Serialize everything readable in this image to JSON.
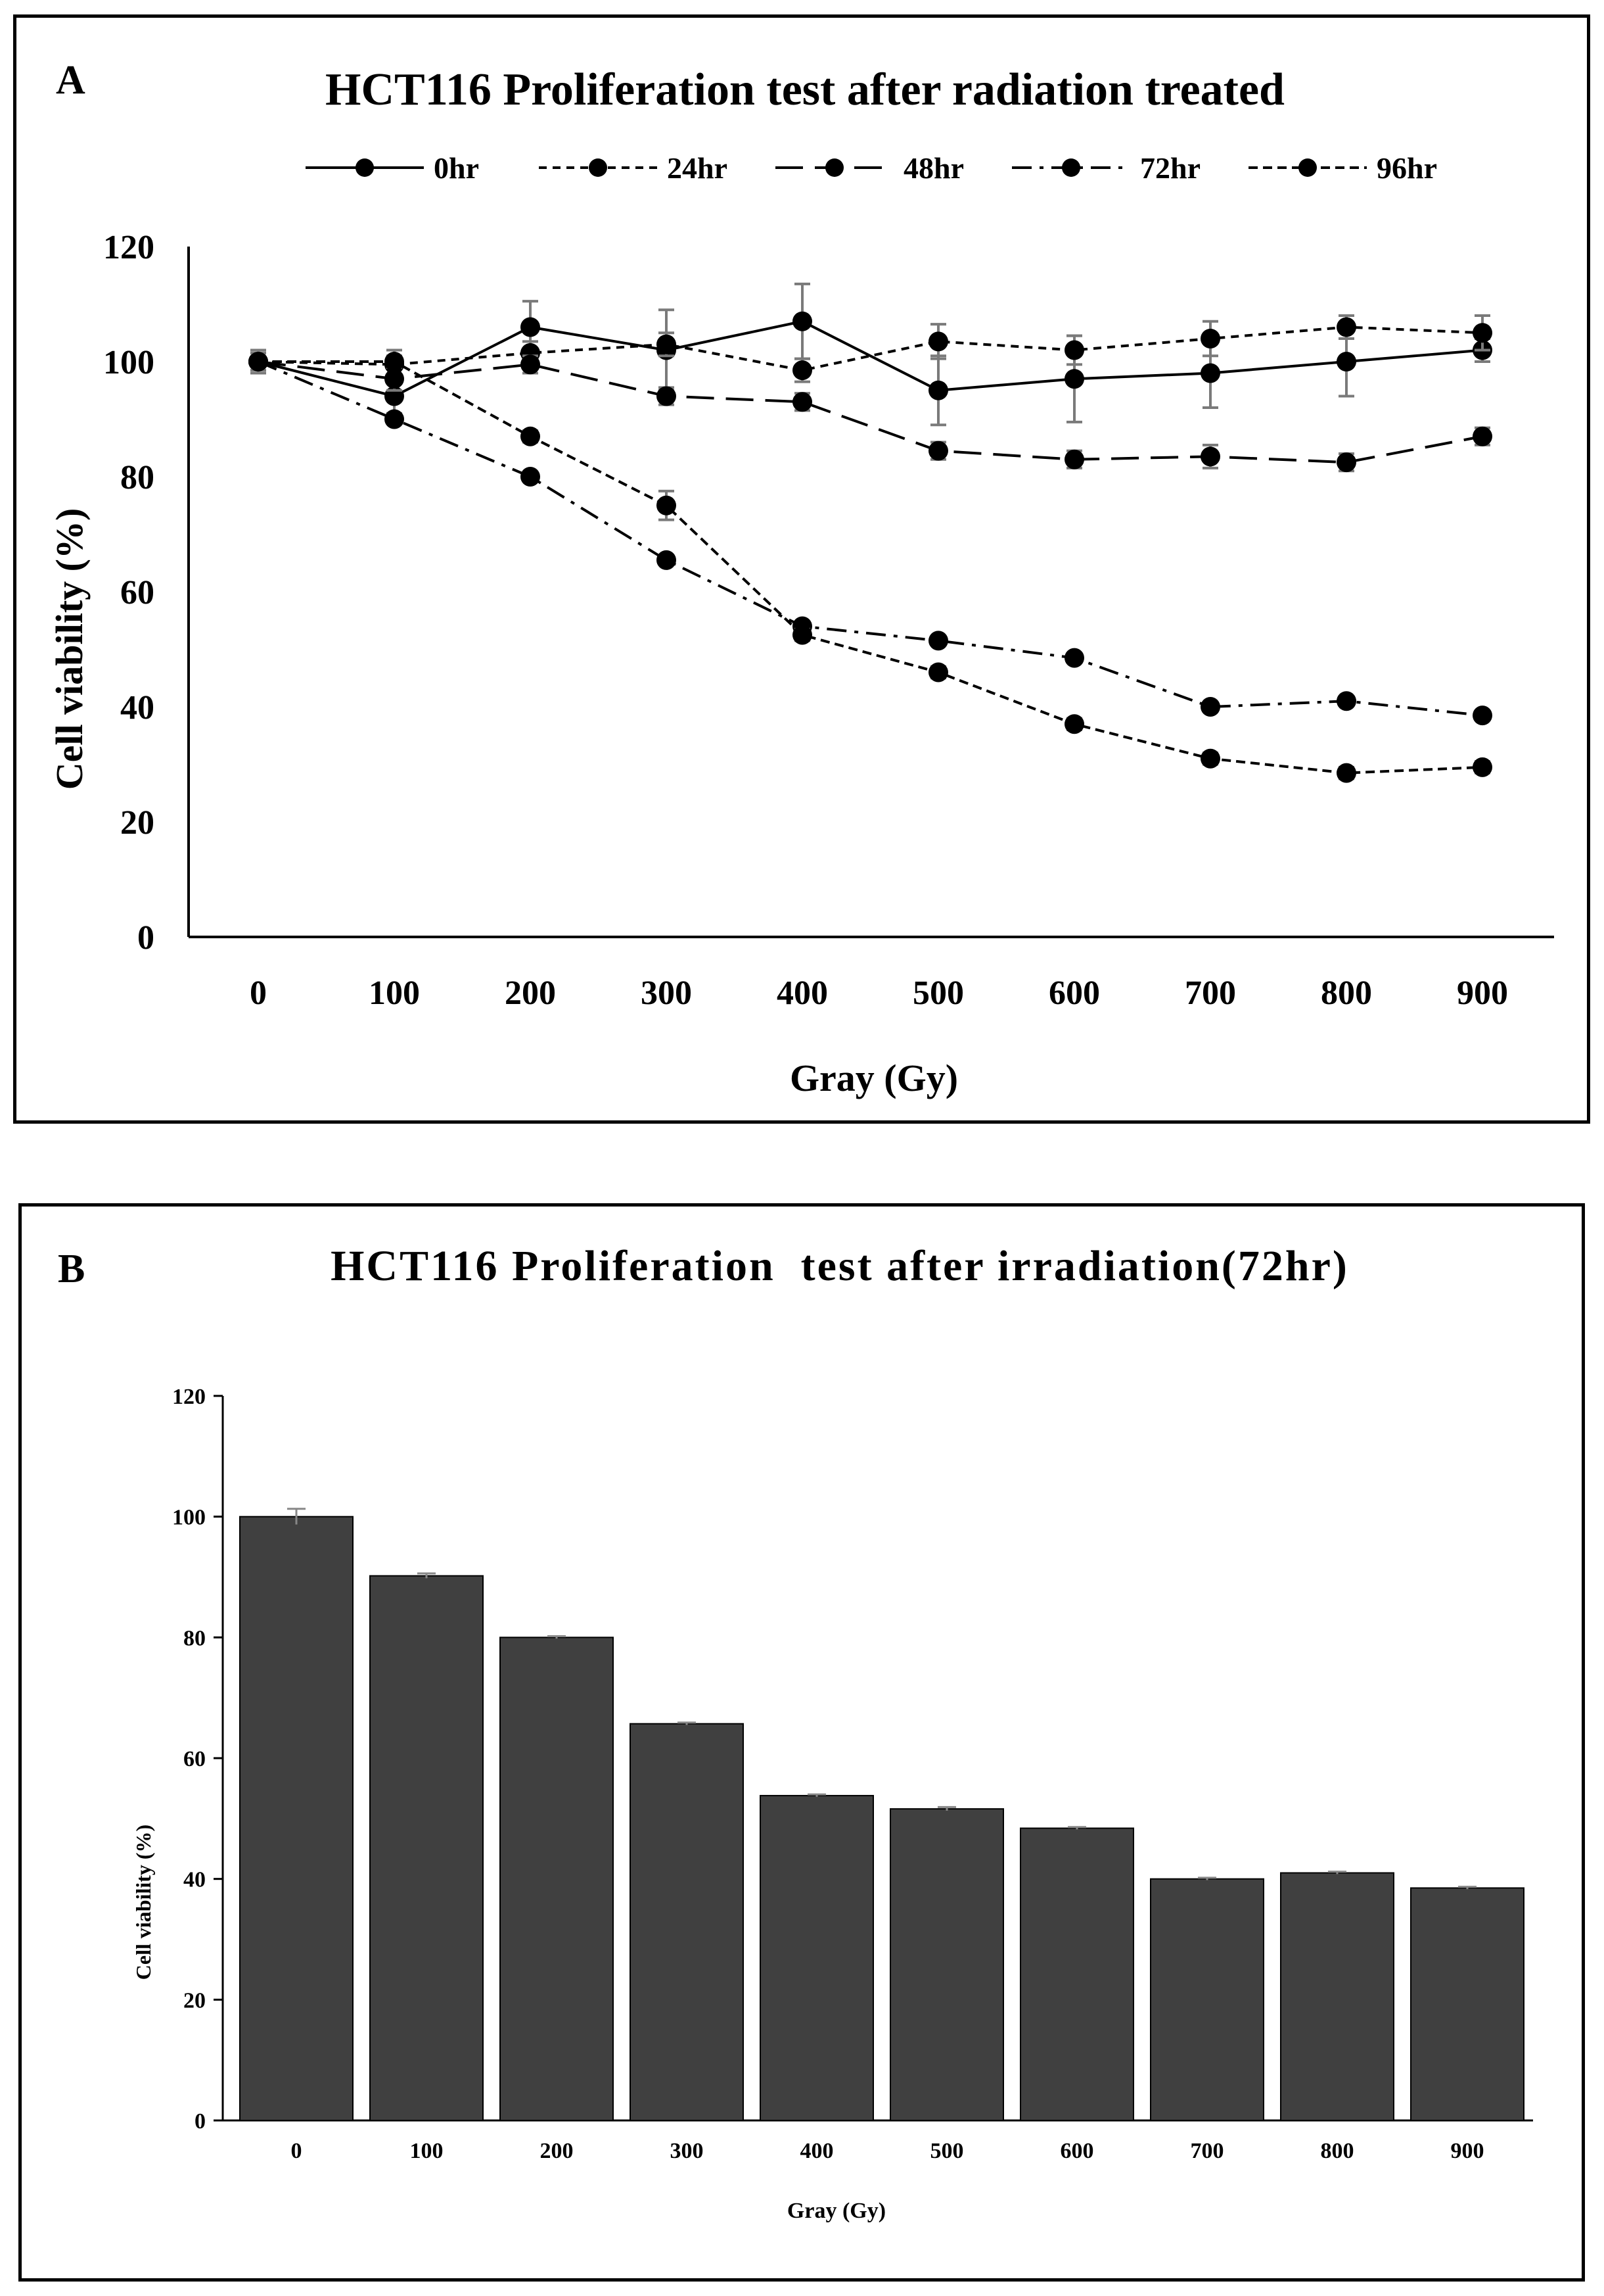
{
  "chart_data": [
    {
      "panel_letter": "A",
      "type": "line",
      "title": "HCT116 Proliferation test after radiation treated",
      "xlabel": "Gray (Gy)",
      "ylabel": "Cell viability  (%)",
      "categories": [
        "0",
        "100",
        "200",
        "300",
        "400",
        "500",
        "600",
        "700",
        "800",
        "900"
      ],
      "ylim": [
        0,
        120
      ],
      "yticks": [
        0,
        20,
        40,
        60,
        80,
        100,
        120
      ],
      "grid": false,
      "legend_position": "top",
      "series": [
        {
          "name": "0hr",
          "dash": "solid",
          "values": [
            100,
            94,
            106,
            102,
            107,
            95,
            97,
            98,
            100,
            102
          ],
          "errors": [
            2,
            3,
            4.5,
            7,
            6.5,
            6,
            7.5,
            6,
            6,
            2
          ]
        },
        {
          "name": "24hr",
          "dash": "short-dash",
          "values": [
            100,
            99.5,
            101.5,
            103,
            98.5,
            103.5,
            102,
            104,
            106,
            105
          ],
          "errors": [
            2,
            2.5,
            2,
            2,
            2,
            3,
            2.5,
            3,
            2,
            3
          ]
        },
        {
          "name": "48hr",
          "dash": "long-dash",
          "values": [
            100,
            97,
            99.5,
            94,
            93,
            84.5,
            83,
            83.5,
            82.5,
            87
          ],
          "errors": [
            2,
            2,
            1.5,
            1.5,
            1.5,
            1.5,
            1.5,
            2,
            1.5,
            1.5
          ]
        },
        {
          "name": "72hr",
          "dash": "dash-dot",
          "values": [
            100,
            90,
            80,
            65.5,
            54,
            51.5,
            48.5,
            40,
            41,
            38.5
          ],
          "errors": [
            1.5,
            0.5,
            0.5,
            0.5,
            0.5,
            0.5,
            0.5,
            0.5,
            0.5,
            0.5
          ]
        },
        {
          "name": "96hr",
          "dash": "dotted",
          "values": [
            100,
            100,
            87,
            75,
            52.5,
            46,
            37,
            31,
            28.5,
            29.5
          ],
          "errors": [
            1.5,
            1,
            1,
            2.5,
            1,
            1,
            1,
            1,
            1,
            1
          ]
        }
      ]
    },
    {
      "panel_letter": "B",
      "type": "bar",
      "title": "HCT116 Proliferation  test after irradiation(72hr)",
      "xlabel": "Gray (Gy)",
      "ylabel": "Cell viability (%)",
      "categories": [
        "0",
        "100",
        "200",
        "300",
        "400",
        "500",
        "600",
        "700",
        "800",
        "900"
      ],
      "values": [
        100,
        90.2,
        80,
        65.7,
        53.8,
        51.6,
        48.4,
        40,
        41,
        38.5
      ],
      "errors": [
        1.3,
        0.4,
        0.2,
        0.2,
        0.2,
        0.3,
        0.2,
        0.2,
        0.2,
        0.2
      ],
      "ylim": [
        0,
        120
      ],
      "yticks": [
        0,
        20,
        40,
        60,
        80,
        100,
        120
      ],
      "grid": false,
      "bar_color": "#404040"
    }
  ]
}
